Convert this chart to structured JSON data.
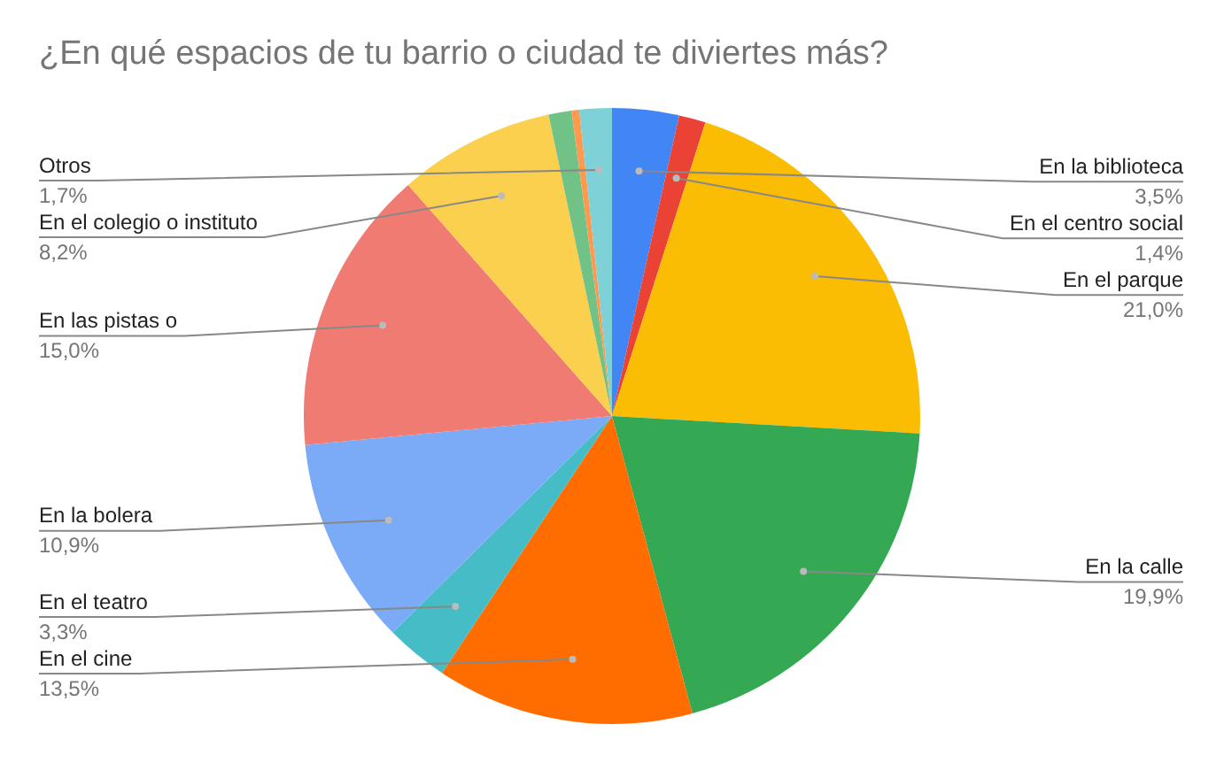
{
  "chart_data": {
    "type": "pie",
    "title": "¿En qué espacios de tu barrio o ciudad te diviertes más?",
    "categories": [
      "En la biblioteca",
      "En el centro social",
      "En el parque",
      "En la calle",
      "En el cine",
      "En el teatro",
      "En la bolera",
      "En las pistas o",
      "En el colegio o instituto",
      null,
      null,
      "Otros"
    ],
    "values": [
      3.5,
      1.4,
      21.0,
      19.9,
      13.5,
      3.3,
      10.9,
      15.0,
      8.2,
      1.2,
      0.4,
      1.7
    ],
    "value_labels": [
      "3,5%",
      "1,4%",
      "21,0%",
      "19,9%",
      "13,5%",
      "3,3%",
      "10,9%",
      "15,0%",
      "8,2%",
      null,
      null,
      "1,7%"
    ],
    "colors": [
      "#4285f4",
      "#ea4335",
      "#fbbc04",
      "#34a853",
      "#ff6d01",
      "#46bdc6",
      "#7baaf7",
      "#f07b72",
      "#fcd04f",
      "#71c287",
      "#ff994d",
      "#7ed1d7"
    ],
    "legend": false
  }
}
